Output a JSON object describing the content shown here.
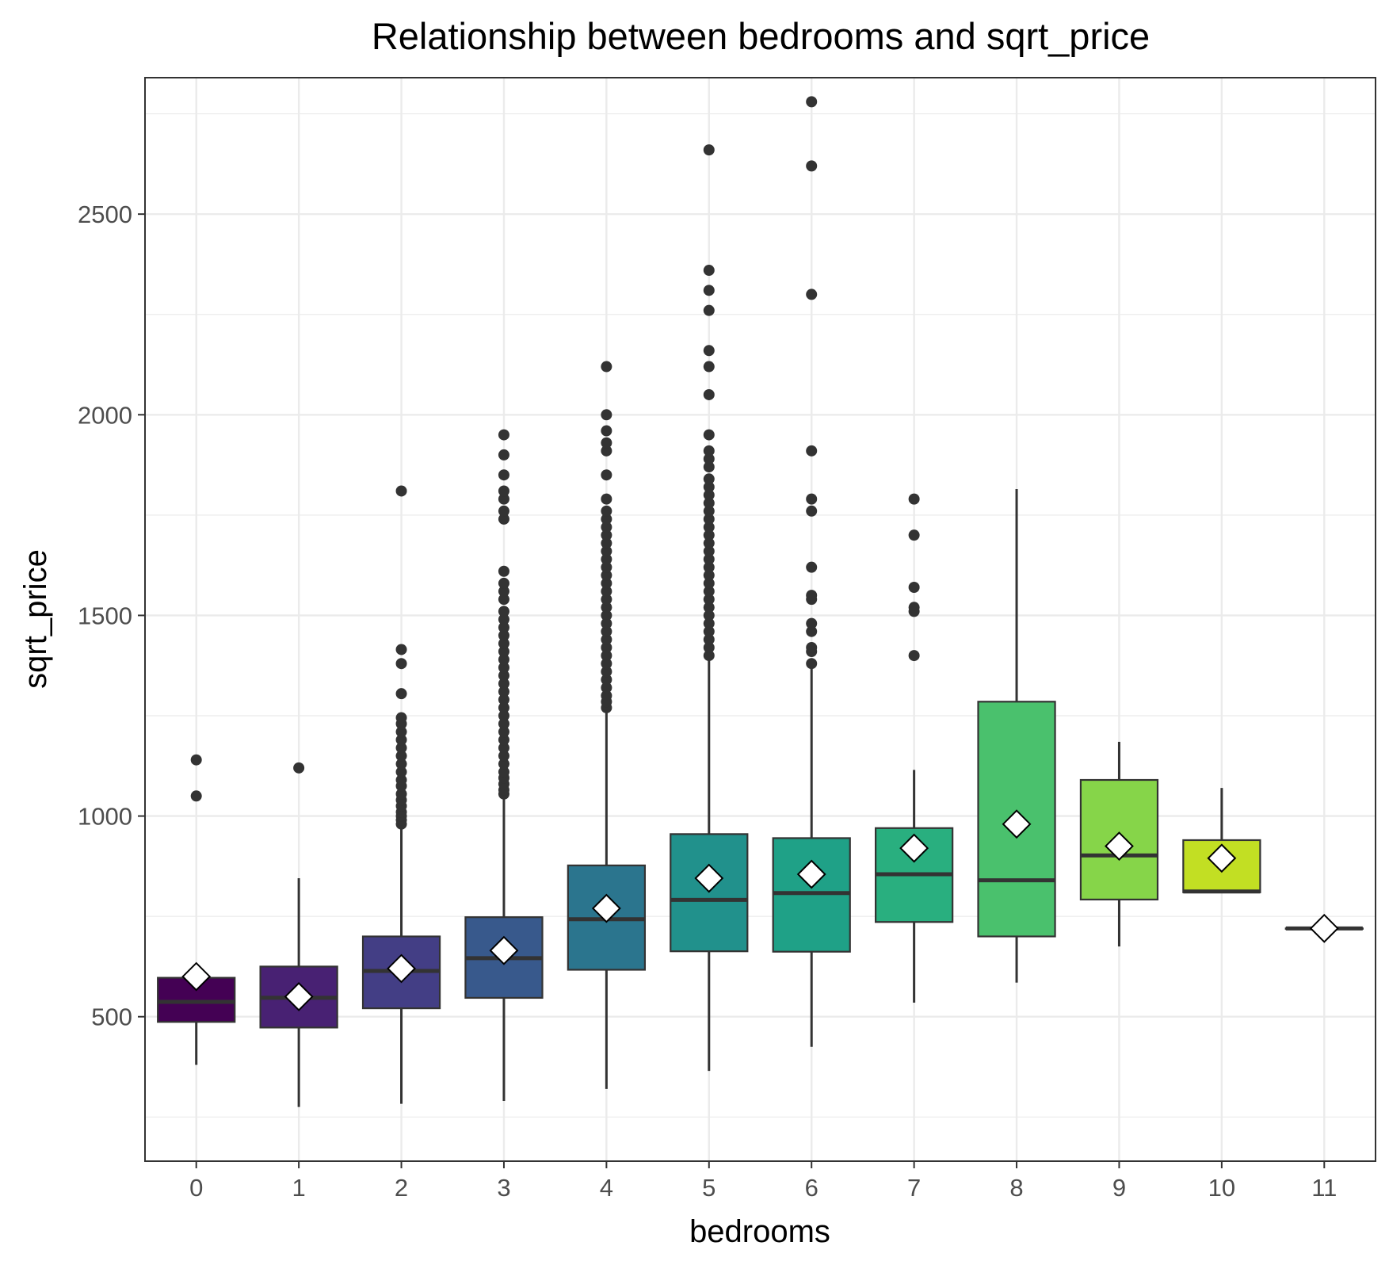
{
  "chart_data": {
    "type": "box",
    "title": "Relationship between bedrooms and sqrt_price",
    "xlabel": "bedrooms",
    "ylabel": "sqrt_price",
    "ylim": [
      140,
      2840
    ],
    "y_ticks": [
      500,
      1000,
      1500,
      2000,
      2500
    ],
    "grid": true,
    "mean_marker": "white diamond",
    "categories": [
      "0",
      "1",
      "2",
      "3",
      "4",
      "5",
      "6",
      "7",
      "8",
      "9",
      "10",
      "11"
    ],
    "boxes": [
      {
        "x": "0",
        "color": "#440154",
        "whisker_low": 380,
        "q1": 487,
        "median": 537,
        "q3": 597,
        "whisker_high": 597,
        "mean": 600,
        "outliers": [
          1050,
          1140
        ]
      },
      {
        "x": "1",
        "color": "#482173",
        "whisker_low": 275,
        "q1": 473,
        "median": 547,
        "q3": 625,
        "whisker_high": 845,
        "mean": 550,
        "outliers": [
          1120
        ]
      },
      {
        "x": "2",
        "color": "#433E85",
        "whisker_low": 283,
        "q1": 521,
        "median": 614,
        "q3": 700,
        "whisker_high": 970,
        "mean": 620,
        "outliers": [
          980,
          990,
          1000,
          1010,
          1025,
          1040,
          1055,
          1075,
          1090,
          1110,
          1130,
          1150,
          1170,
          1190,
          1210,
          1230,
          1245,
          1305,
          1380,
          1415,
          1810
        ]
      },
      {
        "x": "3",
        "color": "#38598C",
        "whisker_low": 290,
        "q1": 547,
        "median": 646,
        "q3": 748,
        "whisker_high": 1050,
        "mean": 665,
        "outliers": [
          1055,
          1065,
          1080,
          1095,
          1110,
          1130,
          1150,
          1170,
          1190,
          1210,
          1230,
          1250,
          1270,
          1290,
          1310,
          1330,
          1350,
          1370,
          1390,
          1410,
          1430,
          1450,
          1470,
          1490,
          1510,
          1540,
          1560,
          1580,
          1610,
          1740,
          1760,
          1790,
          1810,
          1850,
          1900,
          1950
        ]
      },
      {
        "x": "4",
        "color": "#2B758E",
        "whisker_low": 320,
        "q1": 617,
        "median": 743,
        "q3": 877,
        "whisker_high": 1265,
        "mean": 770,
        "outliers": [
          1270,
          1285,
          1300,
          1320,
          1340,
          1360,
          1380,
          1400,
          1420,
          1440,
          1460,
          1480,
          1500,
          1520,
          1540,
          1560,
          1580,
          1600,
          1620,
          1640,
          1660,
          1680,
          1700,
          1720,
          1740,
          1760,
          1790,
          1850,
          1910,
          1930,
          1960,
          2000,
          2120
        ]
      },
      {
        "x": "5",
        "color": "#21918C",
        "whisker_low": 365,
        "q1": 663,
        "median": 791,
        "q3": 955,
        "whisker_high": 1395,
        "mean": 845,
        "outliers": [
          1400,
          1420,
          1440,
          1460,
          1480,
          1500,
          1520,
          1540,
          1560,
          1580,
          1600,
          1620,
          1640,
          1660,
          1680,
          1700,
          1720,
          1740,
          1760,
          1780,
          1800,
          1820,
          1840,
          1870,
          1890,
          1910,
          1950,
          2050,
          2120,
          2160,
          2260,
          2310,
          2360,
          2660
        ]
      },
      {
        "x": "6",
        "color": "#1FA187",
        "whisker_low": 425,
        "q1": 662,
        "median": 808,
        "q3": 945,
        "whisker_high": 1375,
        "mean": 855,
        "outliers": [
          1380,
          1410,
          1420,
          1460,
          1480,
          1540,
          1550,
          1620,
          1760,
          1790,
          1910,
          2300,
          2620,
          2780
        ]
      },
      {
        "x": "7",
        "color": "#29AF7F",
        "whisker_low": 535,
        "q1": 736,
        "median": 855,
        "q3": 970,
        "whisker_high": 1115,
        "mean": 920,
        "outliers": [
          1400,
          1510,
          1520,
          1570,
          1700,
          1790
        ]
      },
      {
        "x": "8",
        "color": "#4AC16D",
        "whisker_low": 585,
        "q1": 700,
        "median": 840,
        "q3": 1285,
        "whisker_high": 1815,
        "mean": 980,
        "outliers": []
      },
      {
        "x": "9",
        "color": "#86D549",
        "whisker_low": 675,
        "q1": 792,
        "median": 902,
        "q3": 1090,
        "whisker_high": 1185,
        "mean": 925,
        "outliers": []
      },
      {
        "x": "10",
        "color": "#C2DF23",
        "whisker_low": 810,
        "q1": 810,
        "median": 812,
        "q3": 940,
        "whisker_high": 1070,
        "mean": 895,
        "outliers": []
      },
      {
        "x": "11",
        "color": "#FDE725",
        "whisker_low": 720,
        "q1": 720,
        "median": 720,
        "q3": 720,
        "whisker_high": 720,
        "mean": 720,
        "outliers": []
      }
    ]
  }
}
